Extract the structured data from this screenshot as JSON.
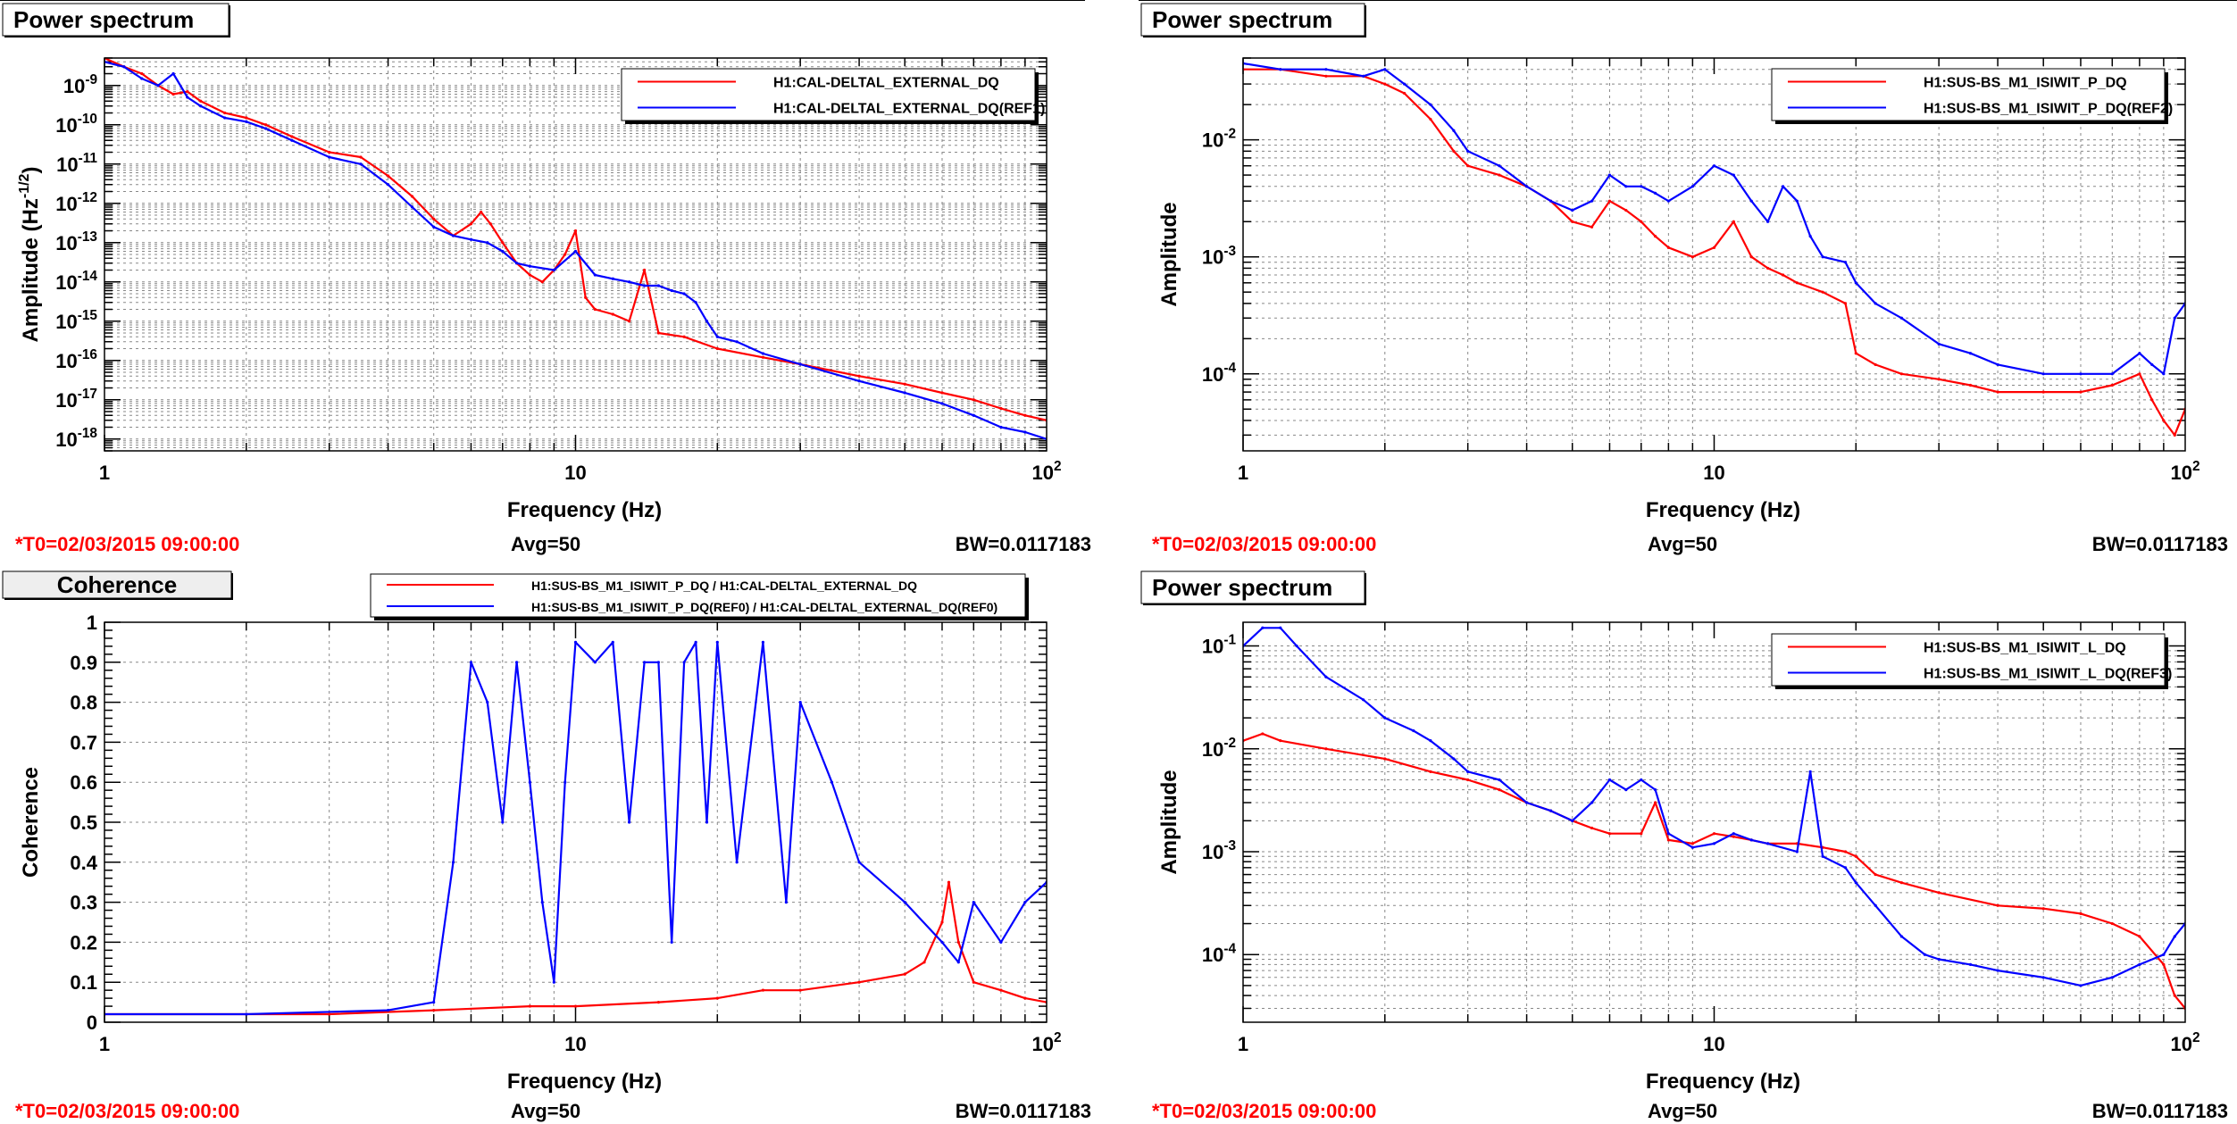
{
  "panels": [
    {
      "title": "Power spectrum",
      "footer": {
        "t0": "*T0=02/03/2015 09:00:00",
        "avg": "Avg=50",
        "bw": "BW=0.0117183"
      },
      "chart_data": {
        "type": "line",
        "xscale": "log",
        "yscale": "log",
        "xlim": [
          1,
          100
        ],
        "ylim": [
          5e-19,
          5e-09
        ],
        "xlabel": "Frequency (Hz)",
        "ylabel": "Amplitude (Hz^-1/2)",
        "ylabel_base": "Amplitude (Hz",
        "ylabel_sup": "-1/2",
        "ylabel_end": ")",
        "xticklabels": [
          "1",
          "10",
          "10^2"
        ],
        "yticklabels": [
          "10^-18",
          "10^-17",
          "10^-16",
          "10^-15",
          "10^-14",
          "10^-13",
          "10^-12",
          "10^-11",
          "10^-10",
          "10^-9"
        ],
        "grid": true,
        "legend_position": "top-right",
        "series": [
          {
            "name": "H1:CAL-DELTAL_EXTERNAL_DQ",
            "color": "#ff0000",
            "x": [
              1,
              1.1,
              1.2,
              1.3,
              1.4,
              1.5,
              1.6,
              1.8,
              2,
              2.2,
              2.5,
              3,
              3.5,
              4,
              4.5,
              5,
              5.5,
              6,
              6.3,
              6.6,
              7,
              7.5,
              8,
              8.5,
              9,
              9.5,
              10,
              10.5,
              11,
              12,
              13,
              14,
              15,
              17,
              20,
              25,
              30,
              40,
              50,
              60,
              70,
              80,
              90,
              100
            ],
            "y": [
              5e-09,
              3e-09,
              2e-09,
              1e-09,
              6e-10,
              7e-10,
              4e-10,
              2e-10,
              1.5e-10,
              1e-10,
              5e-11,
              2e-11,
              1.5e-11,
              5e-12,
              1.5e-12,
              4e-13,
              1.5e-13,
              3e-13,
              6e-13,
              3e-13,
              1e-13,
              3e-14,
              1.5e-14,
              1e-14,
              2e-14,
              5e-14,
              2e-13,
              4e-15,
              2e-15,
              1.5e-15,
              1e-15,
              2e-14,
              5e-16,
              4e-16,
              2e-16,
              1.2e-16,
              8e-17,
              4e-17,
              2.5e-17,
              1.5e-17,
              1e-17,
              6e-18,
              4e-18,
              3e-18
            ]
          },
          {
            "name": "H1:CAL-DELTAL_EXTERNAL_DQ(REF1)",
            "color": "#0000ff",
            "x": [
              1,
              1.1,
              1.2,
              1.3,
              1.4,
              1.5,
              1.6,
              1.8,
              2,
              2.2,
              2.5,
              3,
              3.5,
              4,
              4.5,
              5,
              5.5,
              6,
              6.5,
              7,
              7.5,
              8,
              9,
              10,
              11,
              12,
              13,
              14,
              15,
              16,
              17,
              18,
              19,
              20,
              22,
              25,
              30,
              40,
              50,
              60,
              70,
              80,
              90,
              100
            ],
            "y": [
              4e-09,
              3e-09,
              1.5e-09,
              1e-09,
              2e-09,
              5e-10,
              3e-10,
              1.5e-10,
              1.2e-10,
              8e-11,
              4e-11,
              1.5e-11,
              1e-11,
              3e-12,
              8e-13,
              2.5e-13,
              1.5e-13,
              1.2e-13,
              1e-13,
              6e-14,
              3e-14,
              2.5e-14,
              2e-14,
              6e-14,
              1.5e-14,
              1.2e-14,
              1e-14,
              8e-15,
              8e-15,
              6e-15,
              5e-15,
              3e-15,
              1e-15,
              4e-16,
              3e-16,
              1.5e-16,
              8e-17,
              3e-17,
              1.5e-17,
              8e-18,
              4e-18,
              2e-18,
              1.5e-18,
              1e-18
            ]
          }
        ]
      },
      "legend": {
        "rows": [
          "H1:CAL-DELTAL_EXTERNAL_DQ",
          "H1:CAL-DELTAL_EXTERNAL_DQ(REF1)"
        ]
      }
    },
    {
      "title": "Power spectrum",
      "footer": {
        "t0": "*T0=02/03/2015 09:00:00",
        "avg": "Avg=50",
        "bw": "BW=0.0117183"
      },
      "chart_data": {
        "type": "line",
        "xscale": "log",
        "yscale": "log",
        "xlim": [
          1,
          100
        ],
        "ylim": [
          2.2e-05,
          0.05
        ],
        "xlabel": "Frequency (Hz)",
        "ylabel": "Amplitude",
        "xticklabels": [
          "1",
          "10",
          "10^2"
        ],
        "yticklabels": [
          "10^-4",
          "10^-3",
          "10^-2"
        ],
        "grid": true,
        "legend_position": "top-right",
        "series": [
          {
            "name": "H1:SUS-BS_M1_ISIWIT_P_DQ",
            "color": "#ff0000",
            "x": [
              1,
              1.2,
              1.5,
              1.8,
              2,
              2.2,
              2.5,
              2.8,
              3,
              3.5,
              4,
              4.5,
              5,
              5.5,
              6,
              6.5,
              7,
              7.5,
              8,
              9,
              10,
              11,
              12,
              13,
              14,
              15,
              17,
              19,
              20,
              22,
              25,
              30,
              35,
              40,
              50,
              60,
              70,
              80,
              85,
              90,
              95,
              100
            ],
            "y": [
              0.04,
              0.04,
              0.035,
              0.035,
              0.03,
              0.025,
              0.015,
              0.008,
              0.006,
              0.005,
              0.004,
              0.003,
              0.002,
              0.0018,
              0.003,
              0.0025,
              0.002,
              0.0015,
              0.0012,
              0.001,
              0.0012,
              0.002,
              0.001,
              0.0008,
              0.0007,
              0.0006,
              0.0005,
              0.0004,
              0.00015,
              0.00012,
              0.0001,
              9e-05,
              8e-05,
              7e-05,
              7e-05,
              7e-05,
              8e-05,
              0.0001,
              6e-05,
              4e-05,
              3e-05,
              5e-05
            ]
          },
          {
            "name": "H1:SUS-BS_M1_ISIWIT_P_DQ(REF2)",
            "color": "#0000ff",
            "x": [
              1,
              1.2,
              1.5,
              1.8,
              2,
              2.2,
              2.5,
              2.8,
              3,
              3.5,
              4,
              4.5,
              5,
              5.5,
              6,
              6.5,
              7,
              7.5,
              8,
              9,
              10,
              11,
              12,
              13,
              14,
              15,
              16,
              17,
              19,
              20,
              22,
              25,
              30,
              35,
              40,
              50,
              60,
              70,
              80,
              85,
              90,
              95,
              100
            ],
            "y": [
              0.045,
              0.04,
              0.04,
              0.035,
              0.04,
              0.03,
              0.02,
              0.012,
              0.008,
              0.006,
              0.004,
              0.003,
              0.0025,
              0.003,
              0.005,
              0.004,
              0.004,
              0.0035,
              0.003,
              0.004,
              0.006,
              0.005,
              0.003,
              0.002,
              0.004,
              0.003,
              0.0015,
              0.001,
              0.0009,
              0.0006,
              0.0004,
              0.0003,
              0.00018,
              0.00015,
              0.00012,
              0.0001,
              0.0001,
              0.0001,
              0.00015,
              0.00012,
              0.0001,
              0.0003,
              0.0004
            ]
          }
        ]
      },
      "legend": {
        "rows": [
          "H1:SUS-BS_M1_ISIWIT_P_DQ",
          "H1:SUS-BS_M1_ISIWIT_P_DQ(REF2)"
        ]
      }
    },
    {
      "title": "Coherence",
      "footer": {
        "t0": "*T0=02/03/2015 09:00:00",
        "avg": "Avg=50",
        "bw": "BW=0.0117183"
      },
      "chart_data": {
        "type": "line",
        "xscale": "log",
        "yscale": "linear",
        "xlim": [
          1,
          100
        ],
        "ylim": [
          0,
          1
        ],
        "xlabel": "Frequency (Hz)",
        "ylabel": "Coherence",
        "xticklabels": [
          "1",
          "10",
          "10^2"
        ],
        "yticklabels": [
          "0",
          "0.1",
          "0.2",
          "0.3",
          "0.4",
          "0.5",
          "0.6",
          "0.7",
          "0.8",
          "0.9",
          "1"
        ],
        "grid": true,
        "legend_position": "top",
        "series": [
          {
            "name": "H1:SUS-BS_M1_ISIWIT_P_DQ / H1:CAL-DELTAL_EXTERNAL_DQ",
            "color": "#ff0000",
            "x": [
              1,
              2,
              3,
              5,
              8,
              10,
              15,
              20,
              25,
              30,
              40,
              50,
              55,
              60,
              62,
              65,
              70,
              80,
              90,
              100
            ],
            "y": [
              0.02,
              0.02,
              0.02,
              0.03,
              0.04,
              0.04,
              0.05,
              0.06,
              0.08,
              0.08,
              0.1,
              0.12,
              0.15,
              0.25,
              0.35,
              0.2,
              0.1,
              0.08,
              0.06,
              0.05
            ]
          },
          {
            "name": "H1:SUS-BS_M1_ISIWIT_P_DQ(REF0) / H1:CAL-DELTAL_EXTERNAL_DQ(REF0)",
            "color": "#0000ff",
            "x": [
              1,
              2,
              4,
              5,
              5.5,
              6,
              6.5,
              7,
              7.5,
              8,
              8.5,
              9,
              9.5,
              10,
              11,
              12,
              13,
              14,
              15,
              16,
              17,
              18,
              19,
              20,
              22,
              25,
              28,
              30,
              35,
              40,
              50,
              60,
              65,
              70,
              80,
              90,
              100
            ],
            "y": [
              0.02,
              0.02,
              0.03,
              0.05,
              0.4,
              0.9,
              0.8,
              0.5,
              0.9,
              0.6,
              0.3,
              0.1,
              0.6,
              0.95,
              0.9,
              0.95,
              0.5,
              0.9,
              0.9,
              0.2,
              0.9,
              0.95,
              0.5,
              0.95,
              0.4,
              0.95,
              0.3,
              0.8,
              0.6,
              0.4,
              0.3,
              0.2,
              0.15,
              0.3,
              0.2,
              0.3,
              0.35
            ]
          }
        ]
      },
      "legend": {
        "rows": [
          "H1:SUS-BS_M1_ISIWIT_P_DQ / H1:CAL-DELTAL_EXTERNAL_DQ",
          "H1:SUS-BS_M1_ISIWIT_P_DQ(REF0) / H1:CAL-DELTAL_EXTERNAL_DQ(REF0)"
        ]
      }
    },
    {
      "title": "Power spectrum",
      "footer": {
        "t0": "*T0=02/03/2015 09:00:00",
        "avg": "Avg=50",
        "bw": "BW=0.0117183"
      },
      "chart_data": {
        "type": "line",
        "xscale": "log",
        "yscale": "log",
        "xlim": [
          1,
          100
        ],
        "ylim": [
          2.2e-05,
          0.17
        ],
        "xlabel": "Frequency (Hz)",
        "ylabel": "Amplitude",
        "xticklabels": [
          "1",
          "10",
          "10^2"
        ],
        "yticklabels": [
          "10^-4",
          "10^-3",
          "10^-2",
          "10^-1"
        ],
        "grid": true,
        "legend_position": "top-right",
        "series": [
          {
            "name": "H1:SUS-BS_M1_ISIWIT_L_DQ",
            "color": "#ff0000",
            "x": [
              1,
              1.1,
              1.2,
              1.5,
              2,
              2.5,
              3,
              3.5,
              4,
              4.5,
              5,
              5.5,
              6,
              7,
              7.5,
              8,
              9,
              10,
              11,
              12,
              13,
              15,
              17,
              19,
              20,
              22,
              25,
              30,
              40,
              50,
              60,
              70,
              80,
              90,
              95,
              100
            ],
            "y": [
              0.012,
              0.014,
              0.012,
              0.01,
              0.008,
              0.006,
              0.005,
              0.004,
              0.003,
              0.0025,
              0.002,
              0.0017,
              0.0015,
              0.0015,
              0.003,
              0.0013,
              0.0012,
              0.0015,
              0.0014,
              0.0013,
              0.0012,
              0.0012,
              0.0011,
              0.001,
              0.0009,
              0.0006,
              0.0005,
              0.0004,
              0.0003,
              0.00028,
              0.00025,
              0.0002,
              0.00015,
              8e-05,
              4e-05,
              3e-05
            ]
          },
          {
            "name": "H1:SUS-BS_M1_ISIWIT_L_DQ(REF3)",
            "color": "#0000ff",
            "x": [
              1,
              1.1,
              1.2,
              1.3,
              1.5,
              1.8,
              2,
              2.3,
              2.5,
              2.8,
              3,
              3.5,
              4,
              4.5,
              5,
              5.5,
              6,
              6.5,
              7,
              7.5,
              8,
              9,
              10,
              11,
              12,
              13,
              15,
              16,
              17,
              19,
              20,
              22,
              25,
              28,
              30,
              35,
              40,
              50,
              60,
              70,
              80,
              90,
              95,
              100
            ],
            "y": [
              0.1,
              0.15,
              0.15,
              0.1,
              0.05,
              0.03,
              0.02,
              0.015,
              0.012,
              0.008,
              0.006,
              0.005,
              0.003,
              0.0025,
              0.002,
              0.003,
              0.005,
              0.004,
              0.005,
              0.004,
              0.0015,
              0.0011,
              0.0012,
              0.0015,
              0.0013,
              0.0012,
              0.001,
              0.006,
              0.0009,
              0.0007,
              0.0005,
              0.0003,
              0.00015,
              0.0001,
              9e-05,
              8e-05,
              7e-05,
              6e-05,
              5e-05,
              6e-05,
              8e-05,
              0.0001,
              0.00015,
              0.0002
            ]
          }
        ]
      },
      "legend": {
        "rows": [
          "H1:SUS-BS_M1_ISIWIT_L_DQ",
          "H1:SUS-BS_M1_ISIWIT_L_DQ(REF3)"
        ]
      }
    }
  ]
}
